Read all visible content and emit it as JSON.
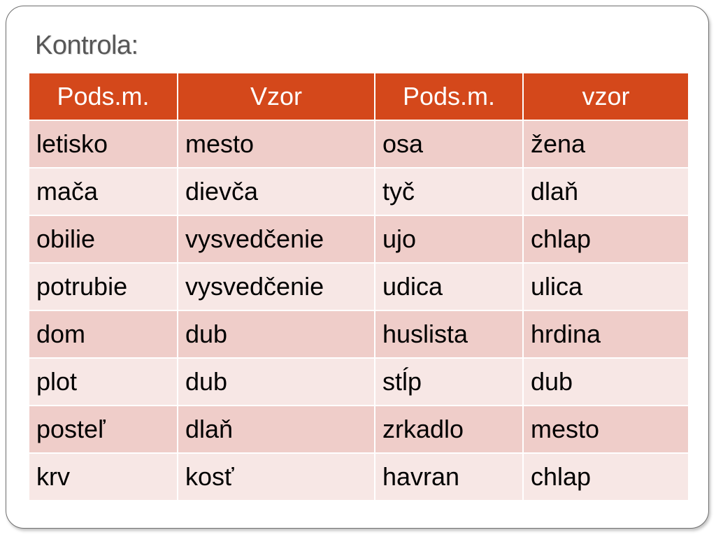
{
  "slide": {
    "title": "Kontrola:"
  },
  "table": {
    "headers": [
      "Pods.m.",
      "Vzor",
      "Pods.m.",
      "vzor"
    ],
    "rows": [
      [
        "letisko",
        "mesto",
        "osa",
        "žena"
      ],
      [
        "mača",
        "dievča",
        "tyč",
        "dlaň"
      ],
      [
        "obilie",
        "vysvedčenie",
        "ujo",
        "chlap"
      ],
      [
        "potrubie",
        "vysvedčenie",
        "udica",
        "ulica"
      ],
      [
        "dom",
        "dub",
        "huslista",
        "hrdina"
      ],
      [
        "plot",
        "dub",
        "stĺp",
        "dub"
      ],
      [
        "posteľ",
        "dlaň",
        "zrkadlo",
        "mesto"
      ],
      [
        "krv",
        "kosť",
        "havran",
        "chlap"
      ]
    ]
  },
  "colors": {
    "header_bg": "#d4481b",
    "row_odd_bg": "#efcdc9",
    "row_even_bg": "#f7e7e5",
    "title_text": "#575757"
  }
}
